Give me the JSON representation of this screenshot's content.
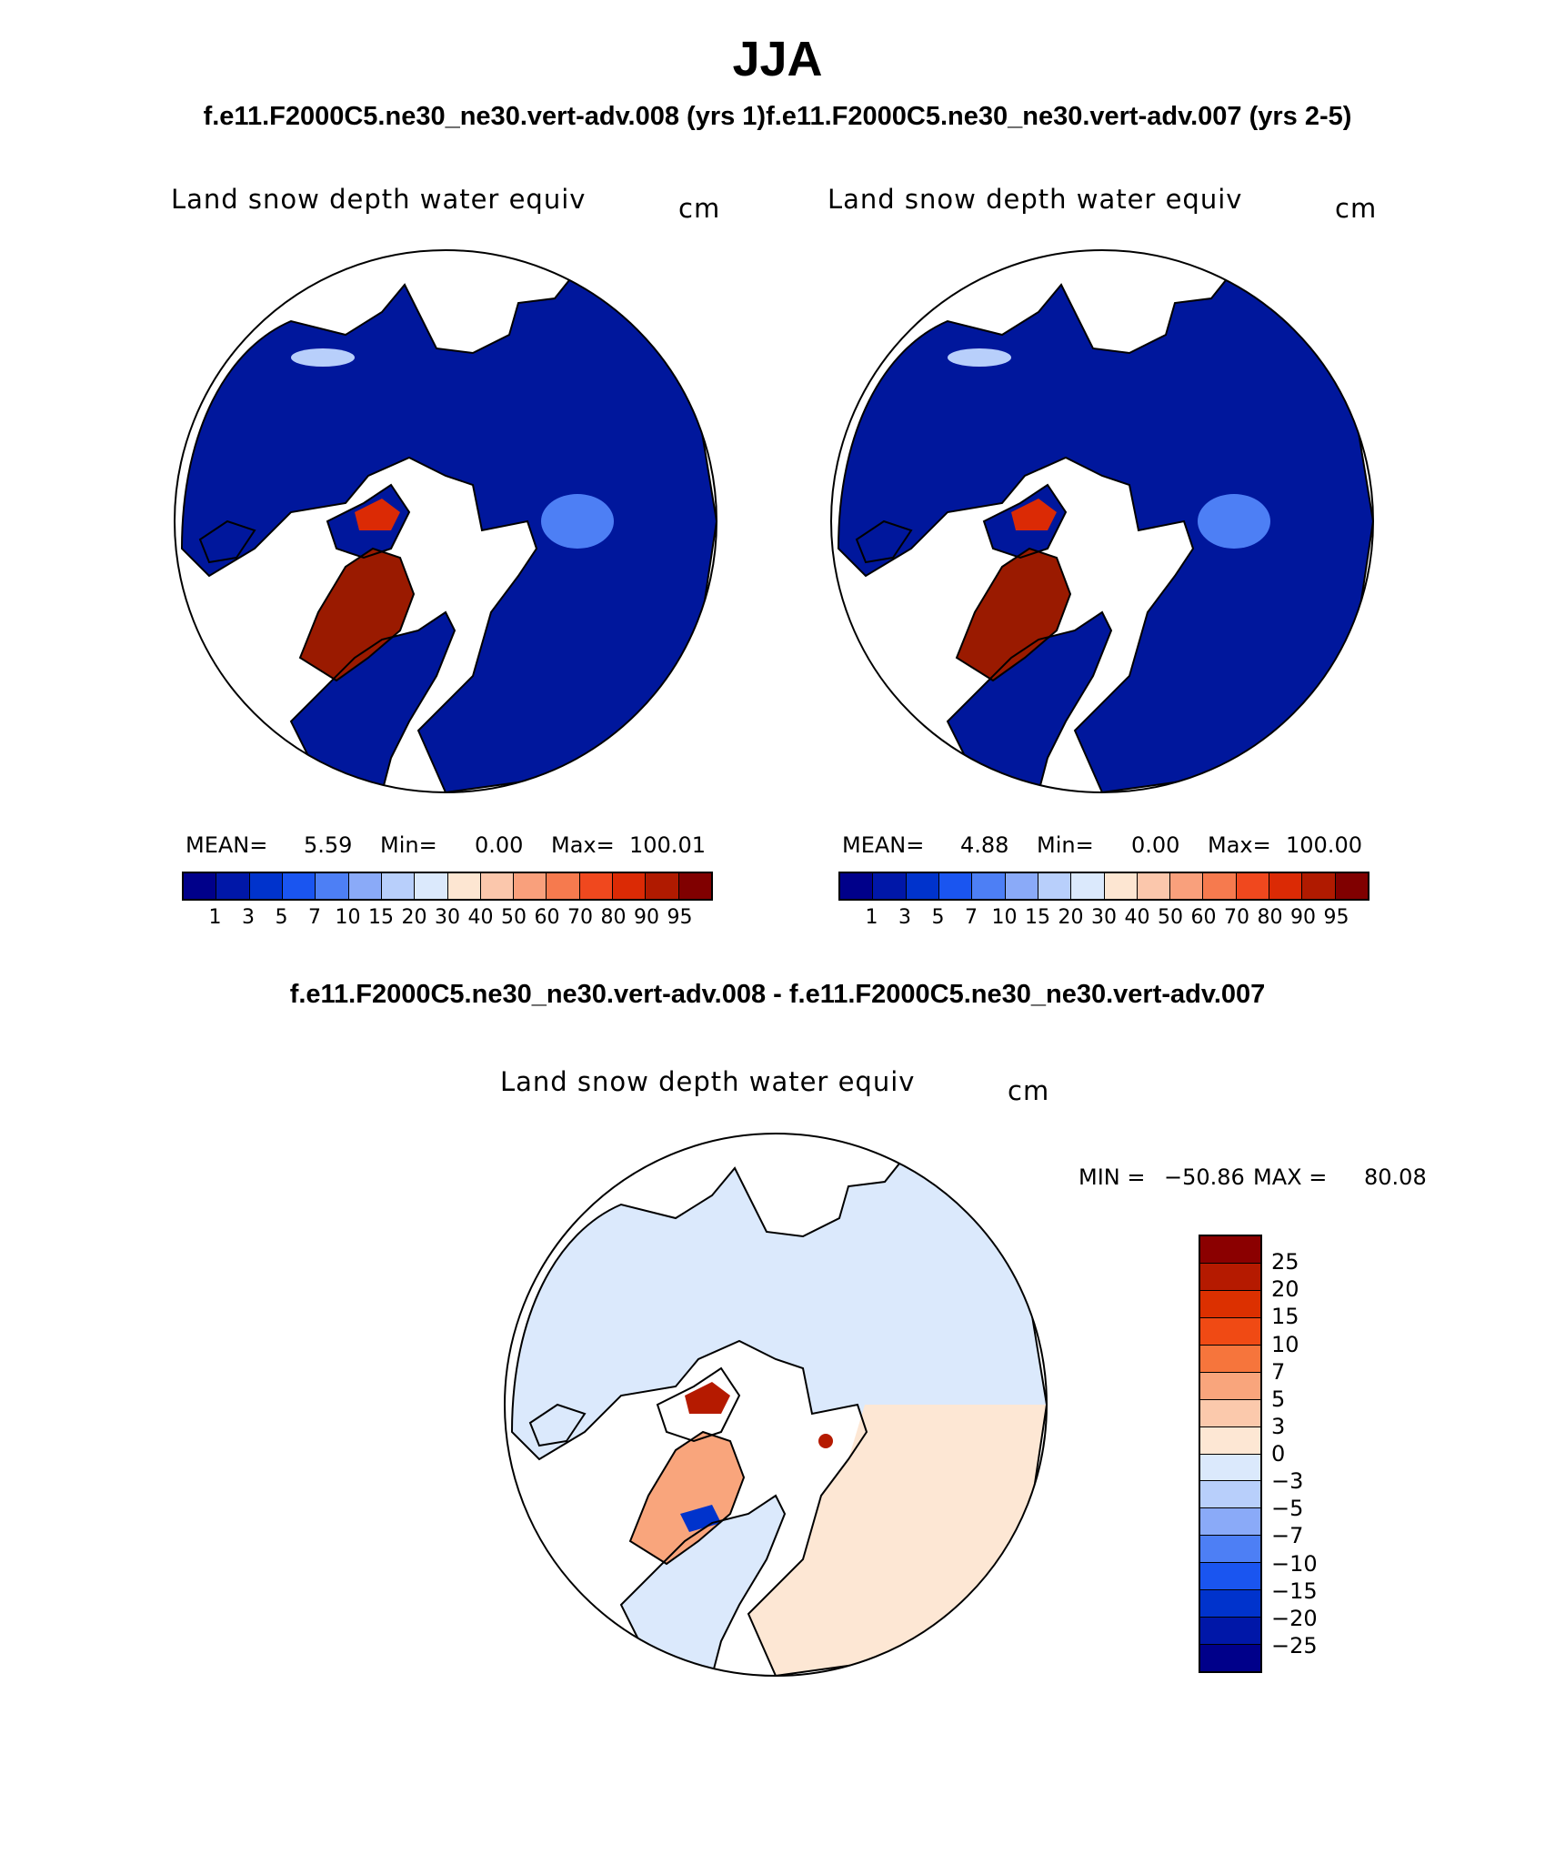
{
  "title": "JJA",
  "subtitle": "f.e11.F2000C5.ne30_ne30.vert-adv.008 (yrs 1)f.e11.F2000C5.ne30_ne30.vert-adv.007 (yrs 2-5)",
  "difference_title": "f.e11.F2000C5.ne30_ne30.vert-adv.008 - f.e11.F2000C5.ne30_ne30.vert-adv.007",
  "panels": [
    {
      "variable": "Land snow depth water equiv",
      "units": "cm",
      "mean_label": "MEAN=",
      "mean_value": "5.59",
      "min_label": "Min=",
      "min_value": "0.00",
      "max_label": "Max=",
      "max_value": "100.01"
    },
    {
      "variable": "Land snow depth water equiv",
      "units": "cm",
      "mean_label": "MEAN=",
      "mean_value": "4.88",
      "min_label": "Min=",
      "min_value": "0.00",
      "max_label": "Max=",
      "max_value": "100.00"
    }
  ],
  "difference_panel": {
    "variable": "Land snow depth water equiv",
    "units": "cm",
    "min_label": "MIN =",
    "min_value": "−50.86",
    "max_label": "MAX =",
    "max_value": "80.08"
  },
  "colorbar_levels": [
    "1",
    "3",
    "5",
    "7",
    "10",
    "15",
    "20",
    "30",
    "40",
    "50",
    "60",
    "70",
    "80",
    "90",
    "95"
  ],
  "colorbar_colors": [
    "#00008a",
    "#0017a8",
    "#0033cc",
    "#1a55f0",
    "#4d7ff5",
    "#8aaaf8",
    "#b8cffb",
    "#dbe9fc",
    "#fde6d2",
    "#fbc7ac",
    "#f9a07c",
    "#f67a4e",
    "#f0481e",
    "#db2a05",
    "#b01a00",
    "#800000"
  ],
  "diff_levels": [
    "25",
    "20",
    "15",
    "10",
    "7",
    "5",
    "3",
    "0",
    "−3",
    "−5",
    "−7",
    "−10",
    "−15",
    "−20",
    "−25"
  ],
  "diff_colors": [
    "#8b0000",
    "#b51a00",
    "#dc3000",
    "#f04a14",
    "#f6753c",
    "#f9a57c",
    "#fbc9ac",
    "#fde7d4",
    "#dbe9fc",
    "#b8cffb",
    "#8aaaf8",
    "#4d7ff5",
    "#1a55f0",
    "#0033cc",
    "#0017a8",
    "#00008a"
  ],
  "map_colors": {
    "ocean": "#ffffff",
    "snow_free_land": "#00179c",
    "deep_snow": "#9a1a00",
    "diff_positive": "#fde7d4",
    "diff_negative": "#dbe9fc"
  }
}
